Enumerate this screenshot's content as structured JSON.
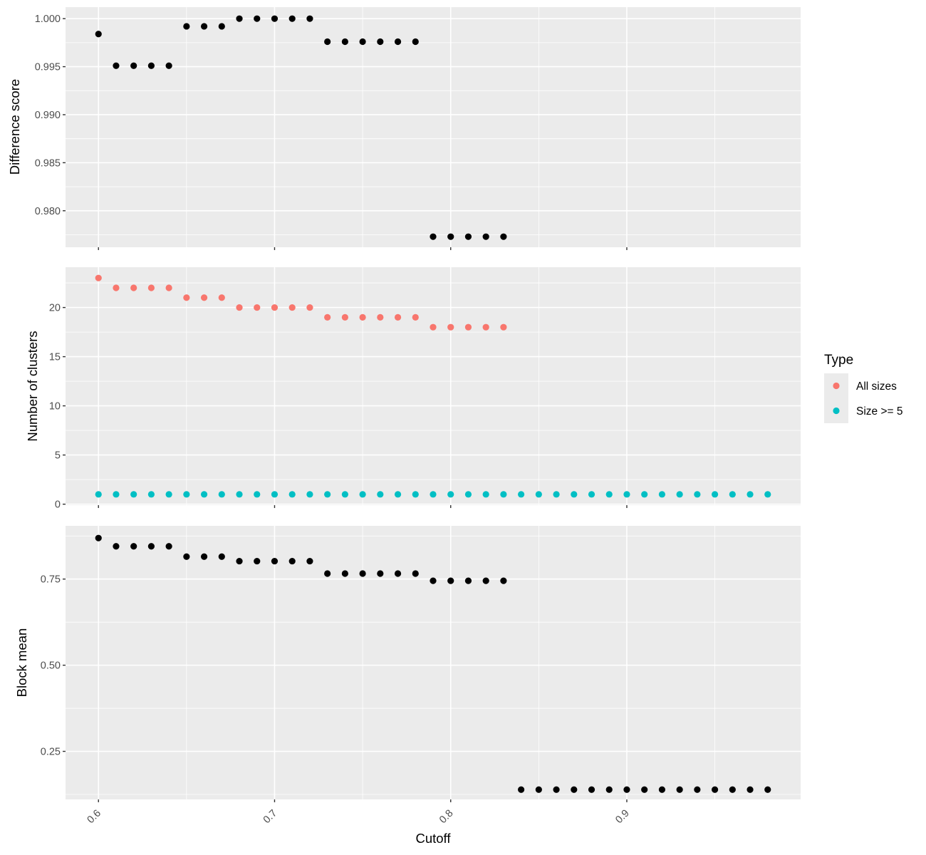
{
  "chart_data": [
    {
      "type": "scatter",
      "panel": "top",
      "title": "",
      "xlabel": "",
      "ylabel": "Difference score",
      "ylim": [
        0.9762,
        1.0012
      ],
      "yticks": [
        0.98,
        0.985,
        0.99,
        0.995,
        1.0
      ],
      "ytick_labels": [
        "0.980",
        "0.985",
        "0.990",
        "0.995",
        "1.000"
      ],
      "grid": true,
      "series": [
        {
          "color": "#000000",
          "x": [
            0.6,
            0.61,
            0.62,
            0.63,
            0.64,
            0.65,
            0.66,
            0.67,
            0.68,
            0.69,
            0.7,
            0.71,
            0.72,
            0.73,
            0.74,
            0.75,
            0.76,
            0.77,
            0.78,
            0.79,
            0.8,
            0.81,
            0.82,
            0.83
          ],
          "y": [
            0.9984,
            0.9951,
            0.9951,
            0.9951,
            0.9951,
            0.9992,
            0.9992,
            0.9992,
            1.0,
            1.0,
            1.0,
            1.0,
            1.0,
            0.9976,
            0.9976,
            0.9976,
            0.9976,
            0.9976,
            0.9976,
            0.9773,
            0.9773,
            0.9773,
            0.9773,
            0.9773
          ]
        }
      ]
    },
    {
      "type": "scatter",
      "panel": "middle",
      "title": "",
      "xlabel": "",
      "ylabel": "Number of clusters",
      "ylim": [
        -0.1,
        24.1
      ],
      "yticks": [
        0,
        5,
        10,
        15,
        20
      ],
      "ytick_labels": [
        "0",
        "5",
        "10",
        "15",
        "20"
      ],
      "grid": true,
      "series": [
        {
          "name": "All sizes",
          "color": "#F8766D",
          "x": [
            0.6,
            0.61,
            0.62,
            0.63,
            0.64,
            0.65,
            0.66,
            0.67,
            0.68,
            0.69,
            0.7,
            0.71,
            0.72,
            0.73,
            0.74,
            0.75,
            0.76,
            0.77,
            0.78,
            0.79,
            0.8,
            0.81,
            0.82,
            0.83
          ],
          "y": [
            23,
            22,
            22,
            22,
            22,
            21,
            21,
            21,
            20,
            20,
            20,
            20,
            20,
            19,
            19,
            19,
            19,
            19,
            19,
            18,
            18,
            18,
            18,
            18
          ]
        },
        {
          "name": "Size >= 5",
          "color": "#00BFC4",
          "x": [
            0.6,
            0.61,
            0.62,
            0.63,
            0.64,
            0.65,
            0.66,
            0.67,
            0.68,
            0.69,
            0.7,
            0.71,
            0.72,
            0.73,
            0.74,
            0.75,
            0.76,
            0.77,
            0.78,
            0.79,
            0.8,
            0.81,
            0.82,
            0.83,
            0.84,
            0.85,
            0.86,
            0.87,
            0.88,
            0.89,
            0.9,
            0.91,
            0.92,
            0.93,
            0.94,
            0.95,
            0.96,
            0.97,
            0.98
          ],
          "y": [
            1,
            1,
            1,
            1,
            1,
            1,
            1,
            1,
            1,
            1,
            1,
            1,
            1,
            1,
            1,
            1,
            1,
            1,
            1,
            1,
            1,
            1,
            1,
            1,
            1,
            1,
            1,
            1,
            1,
            1,
            1,
            1,
            1,
            1,
            1,
            1,
            1,
            1,
            1
          ]
        }
      ]
    },
    {
      "type": "scatter",
      "panel": "bottom",
      "title": "",
      "xlabel": "Cutoff",
      "ylabel": "Block mean",
      "ylim": [
        0.1105,
        0.9045
      ],
      "yticks": [
        0.25,
        0.5,
        0.75
      ],
      "ytick_labels": [
        "0.25",
        "0.50",
        "0.75"
      ],
      "xlim": [
        0.5813,
        0.9987
      ],
      "xticks": [
        0.6,
        0.7,
        0.8,
        0.9
      ],
      "xtick_labels": [
        "0.6",
        "0.7",
        "0.8",
        "0.9"
      ],
      "grid": true,
      "series": [
        {
          "color": "#000000",
          "x": [
            0.6,
            0.61,
            0.62,
            0.63,
            0.64,
            0.65,
            0.66,
            0.67,
            0.68,
            0.69,
            0.7,
            0.71,
            0.72,
            0.73,
            0.74,
            0.75,
            0.76,
            0.77,
            0.78,
            0.79,
            0.8,
            0.81,
            0.82,
            0.83,
            0.84,
            0.85,
            0.86,
            0.87,
            0.88,
            0.89,
            0.9,
            0.91,
            0.92,
            0.93,
            0.94,
            0.95,
            0.96,
            0.97,
            0.98
          ],
          "y": [
            0.869,
            0.845,
            0.845,
            0.845,
            0.845,
            0.815,
            0.815,
            0.815,
            0.802,
            0.802,
            0.802,
            0.802,
            0.802,
            0.766,
            0.766,
            0.766,
            0.766,
            0.766,
            0.766,
            0.745,
            0.745,
            0.745,
            0.745,
            0.745,
            0.139,
            0.139,
            0.139,
            0.139,
            0.139,
            0.139,
            0.139,
            0.139,
            0.139,
            0.139,
            0.139,
            0.139,
            0.139,
            0.139,
            0.139
          ]
        }
      ]
    }
  ],
  "legend": {
    "title": "Type",
    "placement": "right",
    "items": [
      {
        "label": "All sizes",
        "color": "#F8766D"
      },
      {
        "label": "Size >= 5",
        "color": "#00BFC4"
      }
    ]
  }
}
